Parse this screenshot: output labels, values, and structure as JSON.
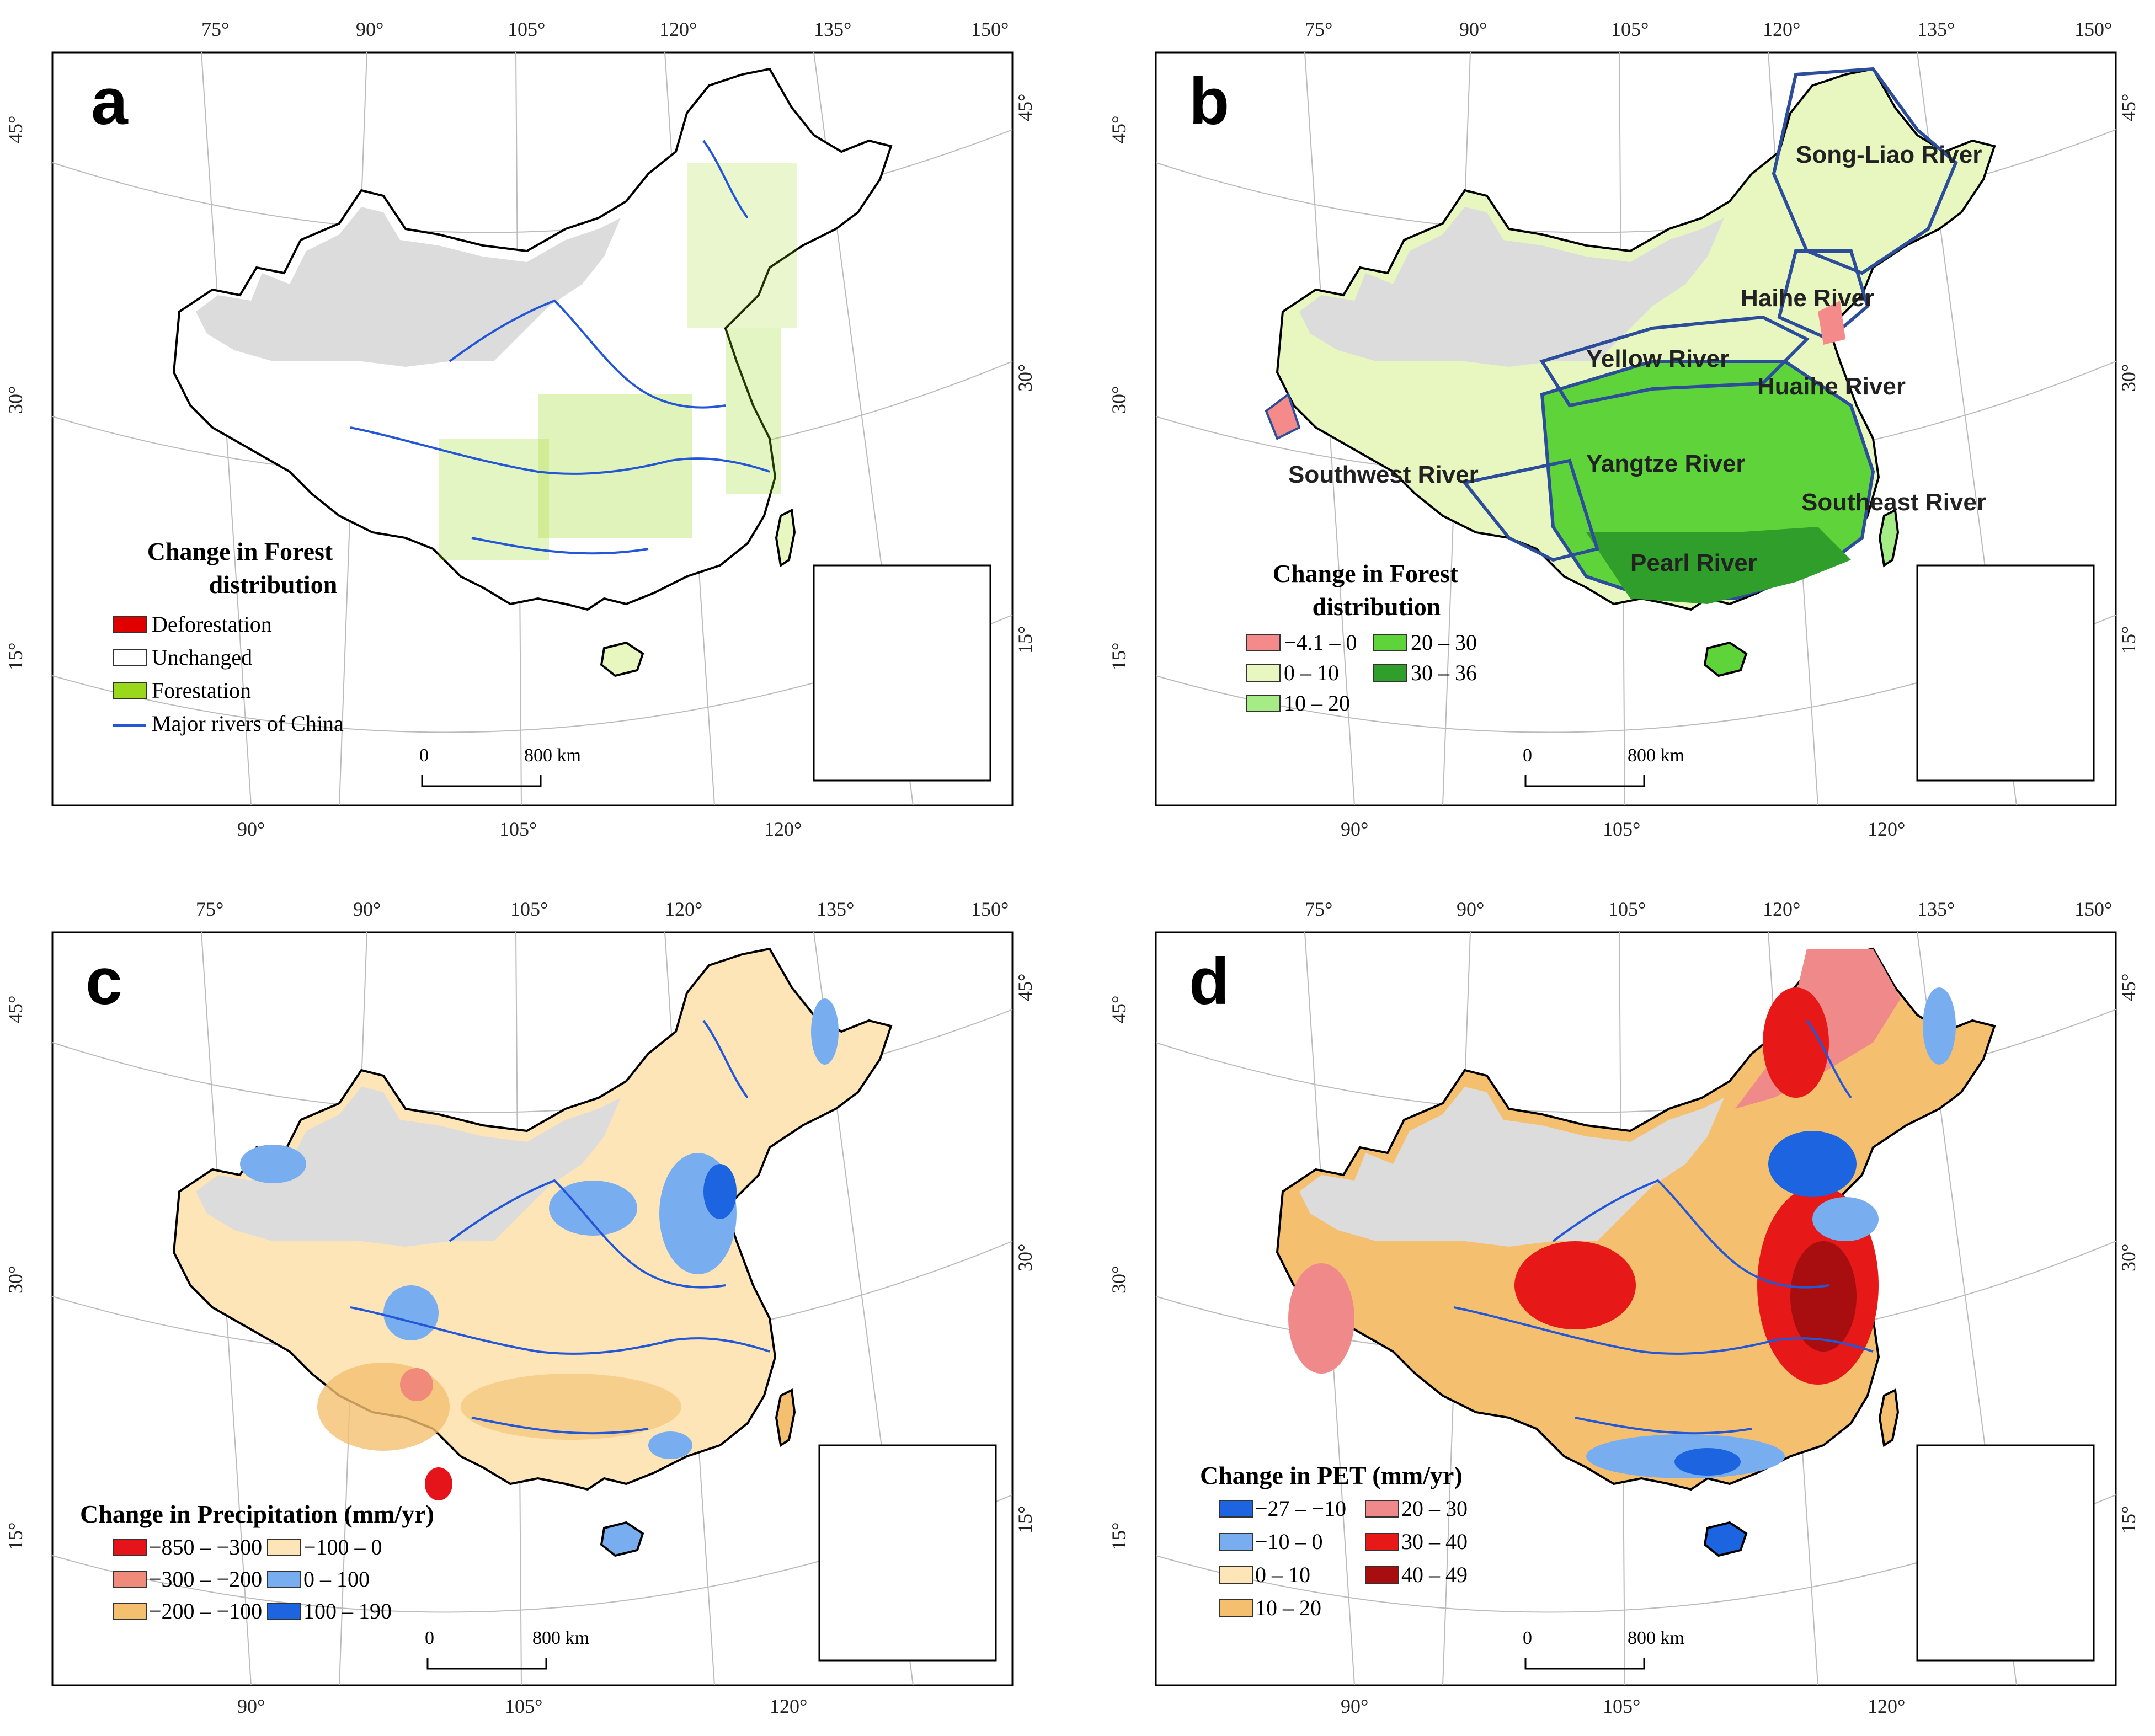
{
  "colors": {
    "gray_region": "#dcdcdc",
    "river": "#2457d6",
    "basin_border": "#2c4d9a",
    "deforestation": "#e00000",
    "forestation": "#99d81a"
  },
  "axes": {
    "top_ticks": [
      "75°",
      "90°",
      "105°",
      "120°",
      "135°",
      "150°"
    ],
    "bottom_ticks": [
      "90°",
      "105°",
      "120°"
    ],
    "left_ticks": [
      "45°",
      "30°",
      "15°"
    ],
    "right_ticks": [
      "45°",
      "30°",
      "15°"
    ]
  },
  "scale_bar": {
    "start": "0",
    "end": "800 km"
  },
  "panels": [
    {
      "letter": "a",
      "legend_title": [
        "Change in Forest",
        "distribution"
      ],
      "legend": [
        {
          "label": "Deforestation",
          "color": "#e00000",
          "kind": "box"
        },
        {
          "label": "Unchanged",
          "color": "#ffffff",
          "kind": "box"
        },
        {
          "label": "Forestation",
          "color": "#99d81a",
          "kind": "box"
        },
        {
          "label": "Major rivers of China",
          "color": "#2457d6",
          "kind": "line"
        }
      ]
    },
    {
      "letter": "b",
      "legend_title": [
        "Change in Forest",
        "distribution"
      ],
      "basins": [
        "Song-Liao River",
        "Haihe River",
        "Yellow River",
        "Huaihe River",
        "Southwest River",
        "Yangtze River",
        "Southeast River",
        "Pearl River"
      ],
      "legend": [
        {
          "label": "−4.1 – 0",
          "color": "#f48a8a"
        },
        {
          "label": "20 – 30",
          "color": "#5fd43a"
        },
        {
          "label": "0 – 10",
          "color": "#e8f7c0"
        },
        {
          "label": "30 – 36",
          "color": "#2f9e2a"
        },
        {
          "label": "10 – 20",
          "color": "#a6ec86"
        }
      ]
    },
    {
      "letter": "c",
      "legend_title": [
        "Change in Precipitation (mm/yr)"
      ],
      "legend": [
        {
          "label": "−850 – −300",
          "color": "#e5141a"
        },
        {
          "label": "−100 – 0",
          "color": "#fde5b8"
        },
        {
          "label": "−300 – −200",
          "color": "#f08a7a"
        },
        {
          "label": "0 – 100",
          "color": "#78aef0"
        },
        {
          "label": "−200 – −100",
          "color": "#f4c070"
        },
        {
          "label": "100 – 190",
          "color": "#1c64e0"
        }
      ]
    },
    {
      "letter": "d",
      "legend_title": [
        "Change in PET (mm/yr)"
      ],
      "legend": [
        {
          "label": "−27 – −10",
          "color": "#1c64e0"
        },
        {
          "label": "20 – 30",
          "color": "#f08a8a"
        },
        {
          "label": "−10 – 0",
          "color": "#78aef0"
        },
        {
          "label": "30 – 40",
          "color": "#e61818"
        },
        {
          "label": "0 – 10",
          "color": "#fde5b8"
        },
        {
          "label": "40 – 49",
          "color": "#a80e10"
        },
        {
          "label": "10 – 20",
          "color": "#f4c070"
        }
      ]
    }
  ]
}
